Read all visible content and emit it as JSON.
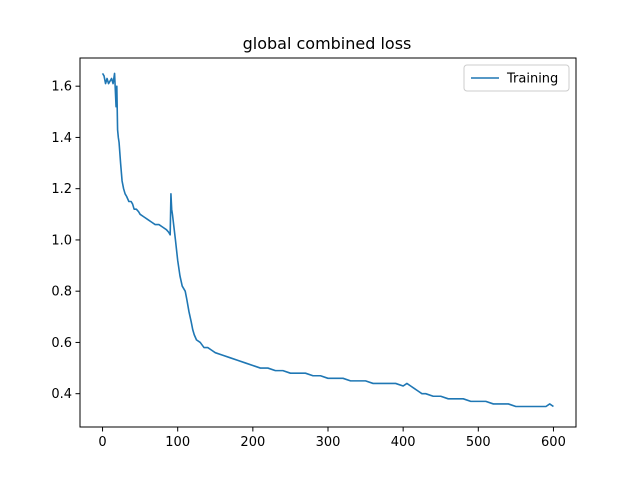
{
  "chart_data": {
    "type": "line",
    "title": "global combined loss",
    "xlabel": "",
    "ylabel": "",
    "xlim": [
      -30,
      630
    ],
    "ylim": [
      0.27,
      1.71
    ],
    "xticks": [
      0,
      100,
      200,
      300,
      400,
      500,
      600
    ],
    "yticks": [
      0.4,
      0.6,
      0.8,
      1.0,
      1.2,
      1.4,
      1.6
    ],
    "grid": false,
    "legend_position": "top-right",
    "series": [
      {
        "name": "Training",
        "color": "#1f77b4",
        "x": [
          0,
          2,
          4,
          6,
          8,
          10,
          12,
          14,
          16,
          18,
          19,
          20,
          21,
          22,
          24,
          26,
          28,
          30,
          32,
          35,
          38,
          40,
          42,
          45,
          48,
          50,
          55,
          60,
          65,
          70,
          75,
          80,
          85,
          88,
          90,
          91,
          92,
          93,
          95,
          97,
          100,
          103,
          106,
          110,
          112,
          115,
          118,
          120,
          122,
          125,
          130,
          135,
          140,
          145,
          150,
          160,
          170,
          180,
          190,
          200,
          210,
          220,
          230,
          240,
          250,
          260,
          270,
          280,
          290,
          300,
          310,
          320,
          330,
          340,
          350,
          360,
          370,
          380,
          390,
          400,
          405,
          410,
          415,
          420,
          425,
          430,
          440,
          450,
          460,
          470,
          480,
          490,
          500,
          510,
          520,
          530,
          540,
          550,
          560,
          570,
          580,
          590,
          595,
          600
        ],
        "values": [
          1.65,
          1.64,
          1.61,
          1.63,
          1.61,
          1.62,
          1.63,
          1.61,
          1.65,
          1.52,
          1.6,
          1.43,
          1.4,
          1.38,
          1.3,
          1.23,
          1.2,
          1.18,
          1.17,
          1.15,
          1.15,
          1.14,
          1.12,
          1.12,
          1.11,
          1.1,
          1.09,
          1.08,
          1.07,
          1.06,
          1.06,
          1.05,
          1.04,
          1.03,
          1.02,
          1.18,
          1.12,
          1.1,
          1.05,
          1.0,
          0.92,
          0.86,
          0.82,
          0.8,
          0.77,
          0.72,
          0.68,
          0.65,
          0.63,
          0.61,
          0.6,
          0.58,
          0.58,
          0.57,
          0.56,
          0.55,
          0.54,
          0.53,
          0.52,
          0.51,
          0.5,
          0.5,
          0.49,
          0.49,
          0.48,
          0.48,
          0.48,
          0.47,
          0.47,
          0.46,
          0.46,
          0.46,
          0.45,
          0.45,
          0.45,
          0.44,
          0.44,
          0.44,
          0.44,
          0.43,
          0.44,
          0.43,
          0.42,
          0.41,
          0.4,
          0.4,
          0.39,
          0.39,
          0.38,
          0.38,
          0.38,
          0.37,
          0.37,
          0.37,
          0.36,
          0.36,
          0.36,
          0.35,
          0.35,
          0.35,
          0.35,
          0.35,
          0.36,
          0.35
        ]
      }
    ]
  }
}
